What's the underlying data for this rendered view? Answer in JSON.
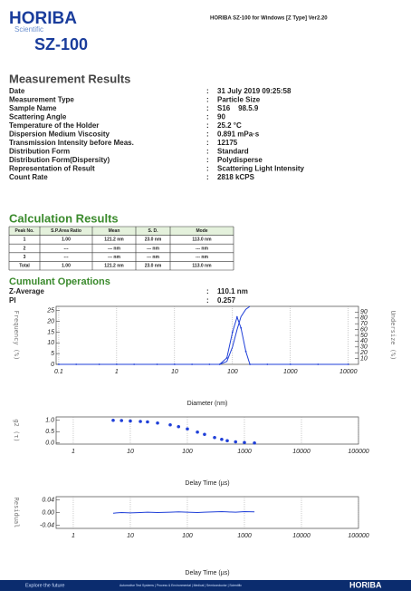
{
  "header": {
    "brand": "HORIBA",
    "tagline": "Scientific",
    "product": "SZ-100",
    "software": "HORIBA SZ-100 for Windows [Z Type] Ver2.20"
  },
  "measurement": {
    "title": "Measurement Results",
    "separator": ":",
    "fields": [
      {
        "label": "Date",
        "value": "31 July 2019 09:25:58"
      },
      {
        "label": "Measurement Type",
        "value": "Particle Size"
      },
      {
        "label": "Sample Name",
        "value": "S16    98.5.9"
      },
      {
        "label": "Scattering Angle",
        "value": "90"
      },
      {
        "label": "Temperature of the Holder",
        "value": "25.2 °C"
      },
      {
        "label": "Dispersion Medium Viscosity",
        "value": "0.891 mPa·s"
      },
      {
        "label": "Transmission Intensity before Meas.",
        "value": "12175"
      },
      {
        "label": "Distribution Form",
        "value": "Standard"
      },
      {
        "label": "Distribution Form(Dispersity)",
        "value": "Polydisperse"
      },
      {
        "label": "Representation of Result",
        "value": "Scattering Light Intensity"
      },
      {
        "label": "Count Rate",
        "value": "2818 kCPS"
      }
    ]
  },
  "calculation": {
    "title": "Calculation Results",
    "columns": [
      "Peak No.",
      "S.P.Area Ratio",
      "Mean",
      "S. D.",
      "Mode"
    ],
    "rows": [
      [
        "1",
        "1.00",
        "121.2 nm",
        "23.0 nm",
        "113.0 nm"
      ],
      [
        "2",
        "---",
        "--- nm",
        "--- nm",
        "--- nm"
      ],
      [
        "3",
        "---",
        "--- nm",
        "--- nm",
        "--- nm"
      ],
      [
        "Total",
        "1.00",
        "121.2 nm",
        "23.0 nm",
        "113.0 nm"
      ]
    ]
  },
  "cumulant": {
    "title": "Cumulant Operations",
    "fields": [
      {
        "label": "Z-Average",
        "value": "110.1 nm"
      },
      {
        "label": "PI",
        "value": "0.257"
      }
    ]
  },
  "charts": [
    {
      "type": "line",
      "xlabel": "Diameter (nm)",
      "ylabel": "Frequency (%)",
      "y2label": "Undersize (%)",
      "xlog": true,
      "xlim": [
        0.09,
        15000
      ],
      "ylim": [
        0,
        27
      ],
      "y2lim": [
        0,
        100
      ],
      "xticks": [
        0.1,
        1,
        10,
        100,
        1000,
        10000
      ],
      "yticks": [
        0,
        5,
        10,
        15,
        20,
        25
      ],
      "y2ticks": [
        10,
        20,
        30,
        40,
        50,
        60,
        70,
        80,
        90
      ],
      "series": [
        {
          "color": "#1f3fd8",
          "markers": true,
          "x": [
            0.1,
            0.2,
            0.5,
            1,
            2,
            5,
            10,
            20,
            40,
            60,
            80,
            100,
            120,
            140,
            170,
            200,
            400,
            1000,
            3000,
            10000
          ],
          "values": [
            0,
            0,
            0,
            0,
            0,
            0,
            0,
            0,
            0,
            0,
            3,
            15,
            22,
            17,
            6,
            0,
            0,
            0,
            0,
            0
          ]
        },
        {
          "color": "#1f3fd8",
          "axis": "y2",
          "x": [
            60,
            80,
            100,
            120,
            140,
            170,
            200
          ],
          "values": [
            0,
            5,
            30,
            60,
            82,
            95,
            100
          ]
        }
      ]
    },
    {
      "type": "scatter",
      "xlabel": "Delay Time (µs)",
      "ylabel": "g2 (τ)",
      "xlog": true,
      "xlim": [
        0.5,
        100000
      ],
      "ylim": [
        -0.05,
        1.15
      ],
      "xticks": [
        1,
        10,
        100,
        1000,
        10000,
        100000
      ],
      "yticks": [
        {
          "value": 0,
          "label": "0.0"
        },
        0.5,
        {
          "value": 1,
          "label": "1.0"
        }
      ],
      "series": [
        {
          "color": "#1f3fd8",
          "x": [
            5,
            7,
            10,
            15,
            20,
            30,
            50,
            70,
            100,
            150,
            200,
            300,
            400,
            500,
            700,
            1000,
            1500
          ],
          "values": [
            1.0,
            0.99,
            0.97,
            0.95,
            0.93,
            0.88,
            0.8,
            0.72,
            0.62,
            0.48,
            0.38,
            0.24,
            0.16,
            0.1,
            0.05,
            0.02,
            0.0
          ]
        }
      ]
    },
    {
      "type": "line",
      "xlabel": "Delay Time (µs)",
      "ylabel": "Residual",
      "xlog": true,
      "xlim": [
        0.5,
        100000
      ],
      "ylim": [
        -0.05,
        0.05
      ],
      "xticks": [
        1,
        10,
        100,
        1000,
        10000,
        100000
      ],
      "yticks": [
        -0.04,
        {
          "value": 0,
          "label": "0.00"
        },
        0.04
      ],
      "series": [
        {
          "color": "#1f3fd8",
          "x": [
            5,
            7,
            10,
            15,
            20,
            30,
            50,
            70,
            100,
            150,
            200,
            300,
            400,
            500,
            700,
            1000,
            1500
          ],
          "values": [
            -0.002,
            0,
            -0.001,
            0,
            0.001,
            0,
            0.001,
            0.002,
            0.001,
            0,
            0.001,
            0.002,
            0.003,
            0.002,
            0.001,
            0.003,
            0.002
          ]
        }
      ]
    }
  ],
  "footer": {
    "slogan": "Explore the future",
    "divisions": "Automotive Test Systems | Process & Environmental | Medical | Semiconductor | Scientific",
    "brand": "HORIBA"
  }
}
